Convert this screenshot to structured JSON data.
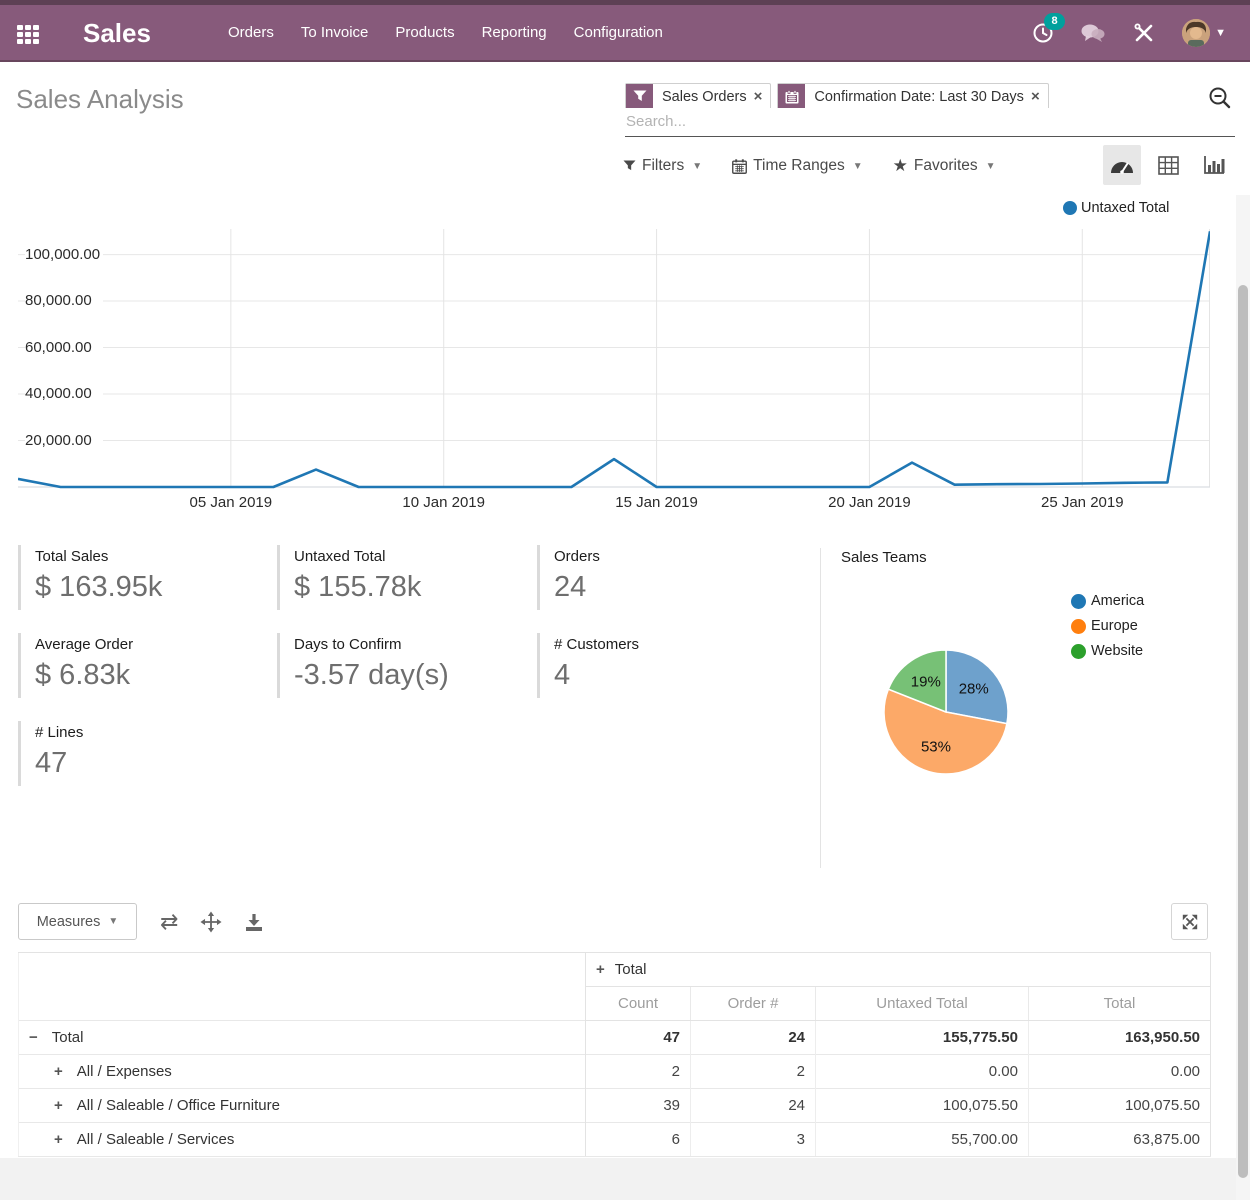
{
  "navbar": {
    "app_title": "Sales",
    "menus": [
      "Orders",
      "To Invoice",
      "Products",
      "Reporting",
      "Configuration"
    ],
    "activities_badge": "8"
  },
  "control_panel": {
    "title": "Sales Analysis",
    "facets": [
      {
        "icon": "filter-icon",
        "label": "Sales Orders",
        "remove": "×"
      },
      {
        "icon": "calendar-icon",
        "label": "Confirmation Date: Last 30 Days",
        "remove": "×"
      }
    ],
    "search_placeholder": "Search...",
    "buttons": {
      "filters": "Filters",
      "time_ranges": "Time Ranges",
      "favorites": "Favorites"
    }
  },
  "chart_data": [
    {
      "type": "line",
      "series_name": "Untaxed Total",
      "color": "#1f77b4",
      "ylim": [
        0,
        111000
      ],
      "grid": true,
      "legend_position": "top-right",
      "y_ticks": [
        {
          "v": 20000,
          "label": "20,000.00"
        },
        {
          "v": 40000,
          "label": "40,000.00"
        },
        {
          "v": 60000,
          "label": "60,000.00"
        },
        {
          "v": 80000,
          "label": "80,000.00"
        },
        {
          "v": 100000,
          "label": "100,000.00"
        }
      ],
      "x_ticks": [
        {
          "i": 5,
          "label": "05 Jan 2019"
        },
        {
          "i": 10,
          "label": "10 Jan 2019"
        },
        {
          "i": 15,
          "label": "15 Jan 2019"
        },
        {
          "i": 20,
          "label": "20 Jan 2019"
        },
        {
          "i": 25,
          "label": "25 Jan 2019"
        }
      ],
      "points": [
        {
          "d": "31 Dec 2018",
          "v": 3500
        },
        {
          "d": "01 Jan 2019",
          "v": 0
        },
        {
          "d": "02 Jan 2019",
          "v": 0
        },
        {
          "d": "03 Jan 2019",
          "v": 0
        },
        {
          "d": "04 Jan 2019",
          "v": 0
        },
        {
          "d": "05 Jan 2019",
          "v": 0
        },
        {
          "d": "06 Jan 2019",
          "v": 0
        },
        {
          "d": "07 Jan 2019",
          "v": 7500
        },
        {
          "d": "08 Jan 2019",
          "v": 0
        },
        {
          "d": "09 Jan 2019",
          "v": 0
        },
        {
          "d": "10 Jan 2019",
          "v": 0
        },
        {
          "d": "11 Jan 2019",
          "v": 0
        },
        {
          "d": "12 Jan 2019",
          "v": 0
        },
        {
          "d": "13 Jan 2019",
          "v": 0
        },
        {
          "d": "14 Jan 2019",
          "v": 12000
        },
        {
          "d": "15 Jan 2019",
          "v": 0
        },
        {
          "d": "16 Jan 2019",
          "v": 0
        },
        {
          "d": "17 Jan 2019",
          "v": 0
        },
        {
          "d": "18 Jan 2019",
          "v": 0
        },
        {
          "d": "19 Jan 2019",
          "v": 0
        },
        {
          "d": "20 Jan 2019",
          "v": 0
        },
        {
          "d": "21 Jan 2019",
          "v": 10500
        },
        {
          "d": "22 Jan 2019",
          "v": 1000
        },
        {
          "d": "23 Jan 2019",
          "v": 1200
        },
        {
          "d": "24 Jan 2019",
          "v": 1300
        },
        {
          "d": "25 Jan 2019",
          "v": 1500
        },
        {
          "d": "26 Jan 2019",
          "v": 1800
        },
        {
          "d": "27 Jan 2019",
          "v": 2000
        },
        {
          "d": "28 Jan 2019",
          "v": 110000
        }
      ]
    },
    {
      "type": "pie",
      "title": "Sales Teams",
      "slices": [
        {
          "label": "America",
          "pct": 28,
          "pct_label": "28%",
          "color": "#6ea1cc",
          "legend_color": "#1f77b4"
        },
        {
          "label": "Europe",
          "pct": 53,
          "pct_label": "53%",
          "color": "#fca968",
          "legend_color": "#ff7f0e"
        },
        {
          "label": "Website",
          "pct": 19,
          "pct_label": "19%",
          "color": "#77c176",
          "legend_color": "#2ca02c"
        }
      ]
    }
  ],
  "kpis": [
    {
      "label": "Total Sales",
      "value": "$ 163.95k"
    },
    {
      "label": "Untaxed Total",
      "value": "$ 155.78k"
    },
    {
      "label": "Orders",
      "value": "24"
    },
    {
      "label": "Average Order",
      "value": "$ 6.83k"
    },
    {
      "label": "Days to Confirm",
      "value": "-3.57 day(s)"
    },
    {
      "label": "# Customers",
      "value": "4"
    },
    {
      "label": "# Lines",
      "value": "47"
    }
  ],
  "sales_teams_title": "Sales Teams",
  "pivot": {
    "measures_label": "Measures",
    "group_header": "Total",
    "group_toggle": "+",
    "columns": [
      "Count",
      "Order #",
      "Untaxed Total",
      "Total"
    ],
    "rows": [
      {
        "toggle": "−",
        "label": "Total",
        "indent": 0,
        "bold": true,
        "cells": [
          "47",
          "24",
          "155,775.50",
          "163,950.50"
        ]
      },
      {
        "toggle": "+",
        "label": "All / Expenses",
        "indent": 1,
        "bold": false,
        "cells": [
          "2",
          "2",
          "0.00",
          "0.00"
        ]
      },
      {
        "toggle": "+",
        "label": "All / Saleable / Office Furniture",
        "indent": 1,
        "bold": false,
        "cells": [
          "39",
          "24",
          "100,075.50",
          "100,075.50"
        ]
      },
      {
        "toggle": "+",
        "label": "All / Saleable / Services",
        "indent": 1,
        "bold": false,
        "cells": [
          "6",
          "3",
          "55,700.00",
          "63,875.00"
        ]
      }
    ]
  },
  "colors": {
    "navbar": "#875a7b",
    "navbar_strip": "#5d4054",
    "badge": "#00a09d",
    "line": "#1f77b4",
    "grid": "#e7e7e7"
  }
}
